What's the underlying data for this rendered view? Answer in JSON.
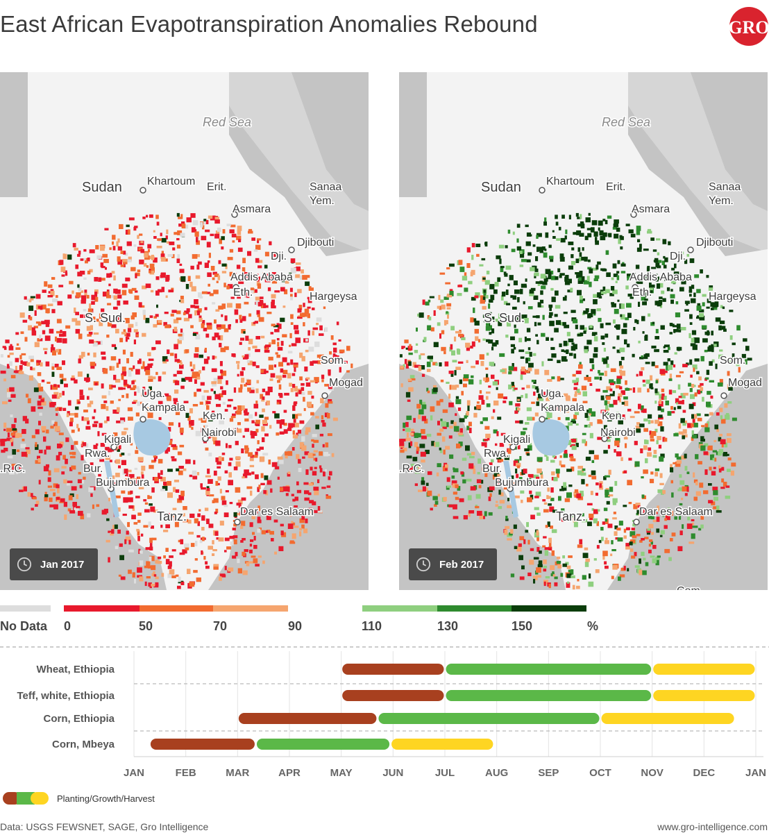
{
  "title": "East African Evapotranspiration Anomalies Rebound",
  "logo_text": "GRO",
  "maps": [
    {
      "date": "Jan 2017",
      "labels": [
        "Red Sea",
        "Sudan",
        "Khartoum",
        "Erit.",
        "Asmara",
        "Sanaa",
        "Yem.",
        "Djibouti",
        "Dji.",
        "Addis Ababa",
        "Eth.",
        "Hargeysa",
        "S. Sud.",
        "Som.",
        "Mogad",
        "Uga.",
        "Kampala",
        "Ken.",
        "Nairobi",
        "Kigali",
        "Rwa.",
        "Bur.",
        "Bujumbura",
        ".R.C.",
        "Tanz.",
        "Dar es Salaam"
      ]
    },
    {
      "date": "Feb 2017",
      "labels": [
        "Red Sea",
        "Sudan",
        "Khartoum",
        "Erit.",
        "Asmara",
        "Sanaa",
        "Yem.",
        "Djibouti",
        "Dji.",
        "Addis Ababa",
        "Eth.",
        "Hargeysa",
        "S. Sud.",
        "Som.",
        "Mogad",
        "Uga.",
        "Kampala",
        "Ken.",
        "Nairobi",
        "Kigali",
        "Rwa.",
        "Bur.",
        "Bujumbura",
        ".R.C.",
        "Tanz.",
        "Dar es Salaam",
        "Com"
      ]
    }
  ],
  "legend": {
    "no_data_label": "No Data",
    "ticks": [
      "0",
      "50",
      "70",
      "90",
      "110",
      "130",
      "150",
      "%"
    ],
    "colors": {
      "no_data": "#dddddd",
      "red": "#e8192c",
      "orange": "#f26b30",
      "light_orange": "#f5a56f",
      "light_green": "#8fcf7f",
      "green": "#2e8b2e",
      "dark_green": "#0b3d0b"
    }
  },
  "calendar": {
    "months": [
      "JAN",
      "FEB",
      "MAR",
      "APR",
      "MAY",
      "JUN",
      "JUL",
      "AUG",
      "SEP",
      "OCT",
      "NOV",
      "DEC",
      "JAN"
    ],
    "crops": [
      {
        "name": "Wheat, Ethiopia",
        "stages": [
          {
            "phase": "planting",
            "start": 4.0,
            "end": 6.0
          },
          {
            "phase": "growth",
            "start": 6.0,
            "end": 10.0
          },
          {
            "phase": "harvest",
            "start": 10.0,
            "end": 12.0
          }
        ]
      },
      {
        "name": "Teff, white, Ethiopia",
        "stages": [
          {
            "phase": "planting",
            "start": 4.0,
            "end": 6.0
          },
          {
            "phase": "growth",
            "start": 6.0,
            "end": 10.0
          },
          {
            "phase": "harvest",
            "start": 10.0,
            "end": 12.0
          }
        ]
      },
      {
        "name": "Corn, Ethiopia",
        "stages": [
          {
            "phase": "planting",
            "start": 2.0,
            "end": 4.7
          },
          {
            "phase": "growth",
            "start": 4.7,
            "end": 9.0
          },
          {
            "phase": "harvest",
            "start": 9.0,
            "end": 11.6
          }
        ]
      },
      {
        "name": "Corn, Mbeya",
        "stages": [
          {
            "phase": "planting",
            "start": 0.3,
            "end": 2.35
          },
          {
            "phase": "growth",
            "start": 2.35,
            "end": 4.95
          },
          {
            "phase": "harvest",
            "start": 4.95,
            "end": 6.95
          }
        ]
      }
    ],
    "phase_colors": {
      "planting": "#a8401f",
      "growth": "#5bb848",
      "harvest": "#fed522"
    },
    "key_label": "Planting/Growth/Harvest"
  },
  "source": "Data: USGS FEWSNET, SAGE, Gro Intelligence",
  "url": "www.gro-intelligence.com"
}
